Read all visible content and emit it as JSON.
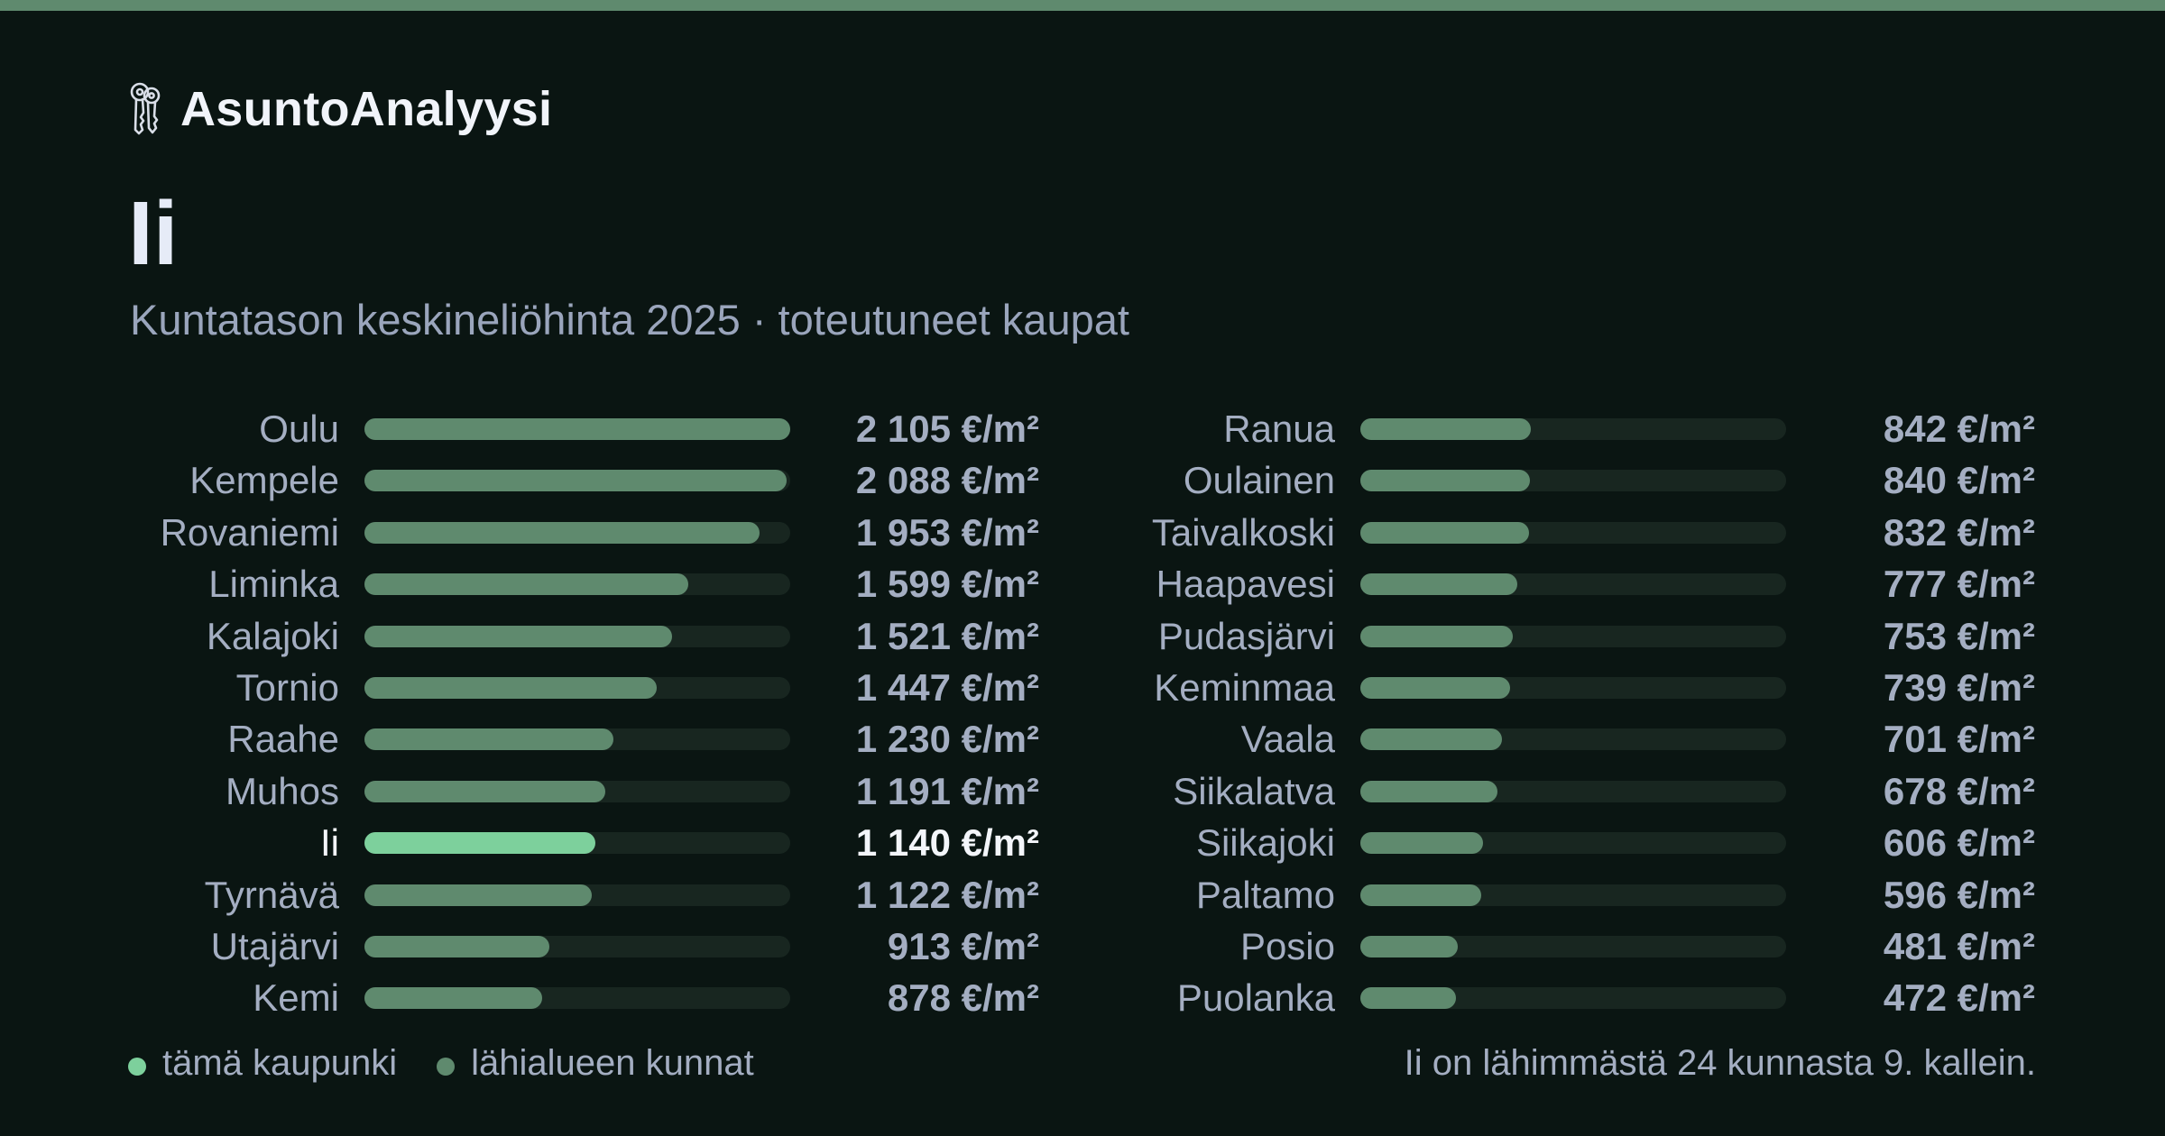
{
  "brand": {
    "name": "AsuntoAnalyysi",
    "icon": "keys-icon"
  },
  "title": "Ii",
  "subtitle": "Kuntatason keskineliöhinta 2025 · toteutuneet kaupat",
  "colors": {
    "accent": "#7dd09c",
    "bar": "#5f8a6e",
    "track": "#182620",
    "background": "#0a1512",
    "stripe": "#5f8a6e"
  },
  "legend": {
    "this_city": "tämä kaupunki",
    "nearby": "lähialueen kunnat"
  },
  "footnote": "Ii on lähimmästä 24 kunnasta 9. kallein.",
  "chart_data": {
    "type": "bar",
    "orientation": "horizontal",
    "unit": "€/m²",
    "highlight": "Ii",
    "max_value": 2105,
    "columns": [
      [
        {
          "name": "Oulu",
          "value": 2105,
          "label": "2 105 €/m²"
        },
        {
          "name": "Kempele",
          "value": 2088,
          "label": "2 088 €/m²"
        },
        {
          "name": "Rovaniemi",
          "value": 1953,
          "label": "1 953 €/m²"
        },
        {
          "name": "Liminka",
          "value": 1599,
          "label": "1 599 €/m²"
        },
        {
          "name": "Kalajoki",
          "value": 1521,
          "label": "1 521 €/m²"
        },
        {
          "name": "Tornio",
          "value": 1447,
          "label": "1 447 €/m²"
        },
        {
          "name": "Raahe",
          "value": 1230,
          "label": "1 230 €/m²"
        },
        {
          "name": "Muhos",
          "value": 1191,
          "label": "1 191 €/m²"
        },
        {
          "name": "Ii",
          "value": 1140,
          "label": "1 140 €/m²"
        },
        {
          "name": "Tyrnävä",
          "value": 1122,
          "label": "1 122 €/m²"
        },
        {
          "name": "Utajärvi",
          "value": 913,
          "label": "913 €/m²"
        },
        {
          "name": "Kemi",
          "value": 878,
          "label": "878 €/m²"
        }
      ],
      [
        {
          "name": "Ranua",
          "value": 842,
          "label": "842 €/m²"
        },
        {
          "name": "Oulainen",
          "value": 840,
          "label": "840 €/m²"
        },
        {
          "name": "Taivalkoski",
          "value": 832,
          "label": "832 €/m²"
        },
        {
          "name": "Haapavesi",
          "value": 777,
          "label": "777 €/m²"
        },
        {
          "name": "Pudasjärvi",
          "value": 753,
          "label": "753 €/m²"
        },
        {
          "name": "Keminmaa",
          "value": 739,
          "label": "739 €/m²"
        },
        {
          "name": "Vaala",
          "value": 701,
          "label": "701 €/m²"
        },
        {
          "name": "Siikalatva",
          "value": 678,
          "label": "678 €/m²"
        },
        {
          "name": "Siikajoki",
          "value": 606,
          "label": "606 €/m²"
        },
        {
          "name": "Paltamo",
          "value": 596,
          "label": "596 €/m²"
        },
        {
          "name": "Posio",
          "value": 481,
          "label": "481 €/m²"
        },
        {
          "name": "Puolanka",
          "value": 472,
          "label": "472 €/m²"
        }
      ]
    ]
  }
}
